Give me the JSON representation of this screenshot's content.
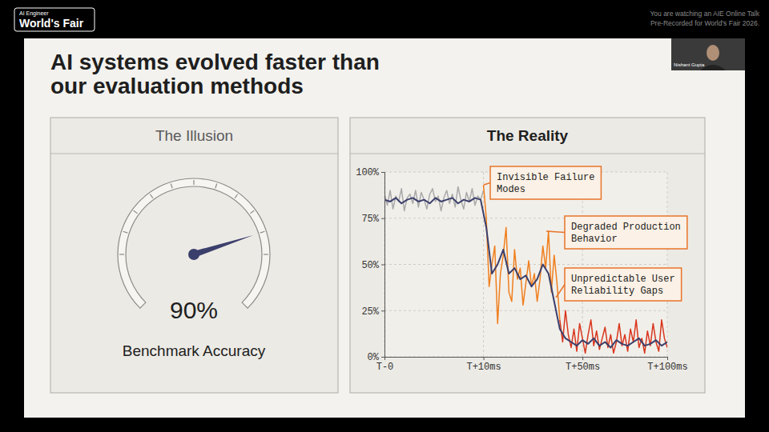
{
  "page": {
    "logo_top": "AI Engineer",
    "logo": "World's Fair",
    "notice": [
      "You are watching an AIE Online Talk",
      "Pre-Recorded for World's Fair 2026."
    ],
    "speaker": "Nishant Gupta",
    "title": [
      "AI systems evolved faster than",
      "our evaluation methods"
    ]
  },
  "chart_data": [
    {
      "type": "gauge",
      "title": "The Illusion",
      "values": [
        90
      ],
      "value_labels": [
        "90%"
      ],
      "xlabel": "Benchmark Accuracy",
      "ylim": [
        0,
        100
      ],
      "yticks": [
        0,
        10,
        20,
        30,
        40,
        50,
        60,
        70,
        80,
        90,
        100
      ],
      "tick_labels": false,
      "color": "#3b3f6b"
    },
    {
      "type": "line",
      "title": "The Reality",
      "xlim": [
        0,
        100
      ],
      "xticks": [
        {
          "value": 0,
          "label": "T-0"
        },
        {
          "value": 35,
          "label": "T+10ms"
        },
        {
          "value": 70,
          "label": "T+50ms"
        },
        {
          "value": 100,
          "label": "T+100ms"
        }
      ],
      "ylim": [
        0,
        100
      ],
      "yticks": [
        {
          "value": 0,
          "label": "0%"
        },
        {
          "value": 25,
          "label": "25%"
        },
        {
          "value": 50,
          "label": "50%"
        },
        {
          "value": 75,
          "label": "75%"
        },
        {
          "value": 100,
          "label": "100%"
        }
      ],
      "grid": true,
      "series": [
        {
          "color": "#a9a9a9",
          "x": [
            0,
            1,
            2,
            3,
            4,
            5,
            6,
            7,
            8,
            9,
            10,
            11,
            12,
            13,
            14,
            15,
            16,
            17,
            18,
            19,
            20,
            21,
            22,
            23,
            24,
            25,
            26,
            27,
            28,
            29,
            30,
            31,
            32,
            33,
            34,
            35
          ],
          "values": [
            88,
            82,
            90,
            80,
            87,
            84,
            91,
            79,
            86,
            88,
            83,
            90,
            81,
            89,
            85,
            80,
            88,
            91,
            84,
            87,
            79,
            86,
            90,
            83,
            88,
            81,
            92,
            85,
            80,
            89,
            84,
            91,
            82,
            87,
            85,
            90
          ]
        },
        {
          "color": "#f07f1e",
          "x": [
            35,
            36,
            37,
            38,
            39,
            40,
            41,
            42,
            43,
            44,
            45,
            46,
            47,
            48,
            49,
            50,
            51,
            52,
            53,
            54,
            55,
            56,
            57,
            58,
            59,
            60,
            61,
            62
          ],
          "values": [
            93,
            75,
            38,
            50,
            60,
            18,
            45,
            55,
            70,
            35,
            30,
            58,
            42,
            48,
            28,
            40,
            52,
            38,
            45,
            30,
            42,
            60,
            48,
            68,
            35,
            55,
            40,
            20
          ]
        },
        {
          "color": "#d9361e",
          "x": [
            62,
            63,
            64,
            65,
            66,
            67,
            68,
            69,
            70,
            71,
            72,
            73,
            74,
            75,
            76,
            77,
            78,
            79,
            80,
            81,
            82,
            83,
            84,
            85,
            86,
            87,
            88,
            89,
            90,
            91,
            92,
            93,
            94,
            95,
            96,
            97,
            98,
            99,
            100
          ],
          "values": [
            20,
            8,
            25,
            12,
            5,
            15,
            3,
            18,
            10,
            2,
            12,
            20,
            6,
            14,
            4,
            10,
            16,
            5,
            12,
            2,
            8,
            18,
            6,
            12,
            3,
            15,
            8,
            20,
            5,
            10,
            2,
            14,
            6,
            18,
            8,
            3,
            20,
            10,
            5
          ]
        },
        {
          "color": "#3b3f6b",
          "x": [
            0,
            2,
            4,
            6,
            8,
            10,
            12,
            14,
            16,
            18,
            20,
            22,
            24,
            26,
            28,
            30,
            32,
            34,
            36,
            38,
            40,
            42,
            44,
            46,
            48,
            50,
            52,
            54,
            56,
            58,
            60,
            62,
            64,
            66,
            68,
            70,
            72,
            74,
            76,
            78,
            80,
            82,
            84,
            86,
            88,
            90,
            92,
            94,
            96,
            98,
            100
          ],
          "values": [
            85,
            84,
            86,
            83,
            85,
            86,
            84,
            85,
            83,
            86,
            84,
            85,
            86,
            83,
            85,
            84,
            86,
            85,
            70,
            45,
            50,
            58,
            45,
            48,
            42,
            44,
            38,
            42,
            50,
            45,
            30,
            15,
            10,
            8,
            6,
            9,
            7,
            10,
            6,
            8,
            5,
            9,
            7,
            6,
            8,
            10,
            6,
            7,
            9,
            6,
            8
          ]
        }
      ],
      "annotations": [
        {
          "lines": [
            "Invisible Failure",
            "Modes"
          ]
        },
        {
          "lines": [
            "Degraded Production",
            "Behavior"
          ]
        },
        {
          "lines": [
            "Unpredictable User",
            "Reliability Gaps"
          ]
        }
      ]
    }
  ]
}
